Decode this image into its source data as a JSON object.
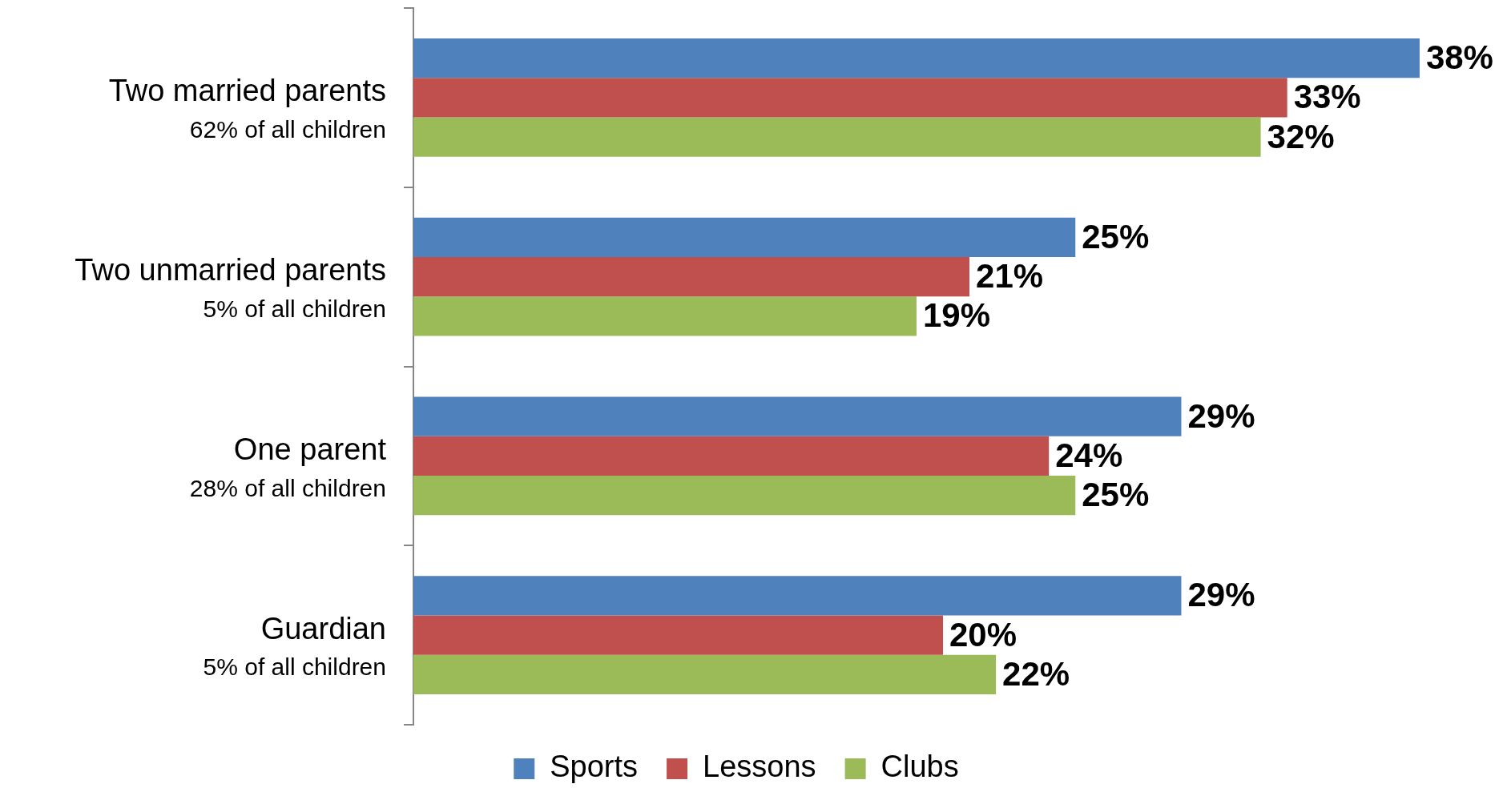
{
  "chart_data": {
    "type": "bar",
    "orientation": "horizontal",
    "categories": [
      "Two married parents\n62% of all children",
      "Two unmarried parents\n5% of all children",
      "One parent\n28% of all children",
      "Guardian\n5% of all children"
    ],
    "series": [
      {
        "name": "Sports",
        "color": "#4f81bd",
        "values": [
          38,
          25,
          29,
          29
        ],
        "value_labels": [
          "38%",
          "25%",
          "29%",
          "29%"
        ]
      },
      {
        "name": "Lessons",
        "color": "#c0504d",
        "values": [
          33,
          21,
          24,
          20
        ],
        "value_labels": [
          "33%",
          "21%",
          "24%",
          "20%"
        ]
      },
      {
        "name": "Clubs",
        "color": "#9bbb59",
        "values": [
          32,
          19,
          25,
          22
        ],
        "value_labels": [
          "32%",
          "19%",
          "25%",
          "22%"
        ]
      }
    ],
    "legend": "bottom"
  }
}
